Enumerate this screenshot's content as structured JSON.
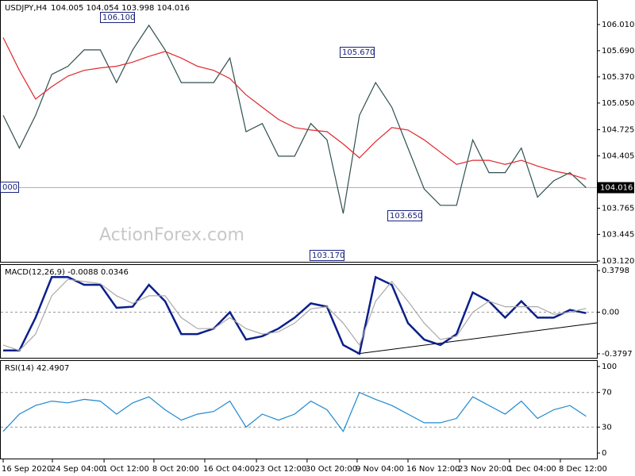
{
  "chart_data": [
    {
      "type": "line",
      "title": "USDJPY,H4",
      "subtitle": "104.005 104.054 103.998 104.016",
      "watermark": "ActionForex.com",
      "ylim": [
        103.1,
        106.3
      ],
      "yticks": [
        {
          "value": 106.01,
          "label": "106.010"
        },
        {
          "value": 105.69,
          "label": "105.690"
        },
        {
          "value": 105.37,
          "label": "105.370"
        },
        {
          "value": 105.05,
          "label": "105.050"
        },
        104.725,
        104.405,
        103.765,
        103.445,
        {
          "value": 103.12,
          "label": "103.120"
        }
      ],
      "last": 104.016,
      "annotations": [
        "106.100",
        "105.670",
        "103.650",
        "103.170",
        "000"
      ],
      "grid": false,
      "series": [
        {
          "name": "USDJPY",
          "color": "#2f4f4f",
          "values": [
            104.9,
            104.5,
            104.9,
            105.4,
            105.5,
            105.7,
            105.7,
            105.3,
            105.7,
            106.0,
            105.7,
            105.3,
            105.3,
            105.3,
            105.6,
            104.7,
            104.8,
            104.4,
            104.4,
            104.8,
            104.6,
            103.7,
            104.9,
            105.3,
            105.0,
            104.5,
            104.0,
            103.8,
            103.8,
            104.6,
            104.2,
            104.2,
            104.5,
            103.9,
            104.1,
            104.2,
            104.016
          ]
        },
        {
          "name": "MA",
          "color": "#e0282e",
          "values": [
            105.85,
            105.45,
            105.1,
            105.25,
            105.38,
            105.45,
            105.48,
            105.5,
            105.55,
            105.62,
            105.68,
            105.6,
            105.5,
            105.45,
            105.35,
            105.15,
            105.0,
            104.85,
            104.75,
            104.72,
            104.7,
            104.55,
            104.38,
            104.58,
            104.75,
            104.72,
            104.6,
            104.45,
            104.3,
            104.35,
            104.35,
            104.3,
            104.35,
            104.28,
            104.22,
            104.18,
            104.12
          ]
        }
      ]
    },
    {
      "type": "line",
      "title": "MACD(12,26,9) -0.0088 0.0346",
      "ylim": [
        -0.424,
        0.431
      ],
      "yticks": [
        0.3798,
        {
          "value": 0,
          "label": "0.00"
        },
        -0.3797
      ],
      "grid": "inner",
      "series": [
        {
          "name": "MACD",
          "color": "#0b1f8a",
          "values": [
            -0.35,
            -0.35,
            -0.05,
            0.32,
            0.32,
            0.25,
            0.25,
            0.04,
            0.05,
            0.25,
            0.1,
            -0.2,
            -0.2,
            -0.15,
            0.0,
            -0.25,
            -0.22,
            -0.15,
            -0.05,
            0.08,
            0.05,
            -0.3,
            -0.38,
            0.32,
            0.25,
            -0.1,
            -0.25,
            -0.3,
            -0.2,
            0.18,
            0.1,
            -0.05,
            0.1,
            -0.05,
            -0.05,
            0.02,
            -0.0088
          ]
        },
        {
          "name": "Signal",
          "color": "#a9a9a9",
          "values": [
            -0.3,
            -0.35,
            -0.2,
            0.15,
            0.3,
            0.28,
            0.26,
            0.15,
            0.08,
            0.15,
            0.15,
            -0.05,
            -0.15,
            -0.15,
            -0.05,
            -0.15,
            -0.2,
            -0.18,
            -0.1,
            0.03,
            0.05,
            -0.1,
            -0.3,
            0.1,
            0.28,
            0.1,
            -0.1,
            -0.25,
            -0.22,
            0.0,
            0.1,
            0.05,
            0.05,
            0.05,
            -0.02,
            0.0,
            0.0346
          ]
        }
      ]
    },
    {
      "type": "line",
      "title": "RSI(14) 42.4907",
      "ylim": [
        -7.3,
        106.4
      ],
      "yticks": [
        100,
        70,
        30,
        0
      ],
      "grid": "inner",
      "xticks": [
        {
          "value": 0,
          "label": "16 Sep 2020"
        },
        {
          "value": 3.04,
          "label": "24 Sep 04:00"
        },
        {
          "value": 6.23,
          "label": "1 Oct 12:00"
        },
        {
          "value": 9.31,
          "label": "8 Oct 20:00"
        },
        {
          "value": 12.45,
          "label": "16 Oct 04:00"
        },
        {
          "value": 15.64,
          "label": "23 Oct 12:00"
        },
        {
          "value": 18.77,
          "label": "30 Oct 20:00"
        },
        {
          "value": 21.86,
          "label": "9 Nov 04:00"
        },
        {
          "value": 25,
          "label": "16 Nov 12:00"
        },
        {
          "value": 28.19,
          "label": "23 Nov 20:00"
        },
        {
          "value": 31.27,
          "label": "1 Dec 04:00"
        },
        {
          "value": 34.41,
          "label": "8 Dec 12:00"
        }
      ],
      "series": [
        {
          "name": "RSI",
          "color": "#1e88d0",
          "values": [
            25,
            45,
            55,
            60,
            58,
            62,
            60,
            45,
            58,
            65,
            50,
            38,
            45,
            48,
            60,
            30,
            45,
            38,
            45,
            60,
            50,
            25,
            70,
            62,
            55,
            45,
            35,
            35,
            40,
            65,
            55,
            45,
            60,
            40,
            50,
            55,
            42.49
          ]
        }
      ]
    }
  ]
}
